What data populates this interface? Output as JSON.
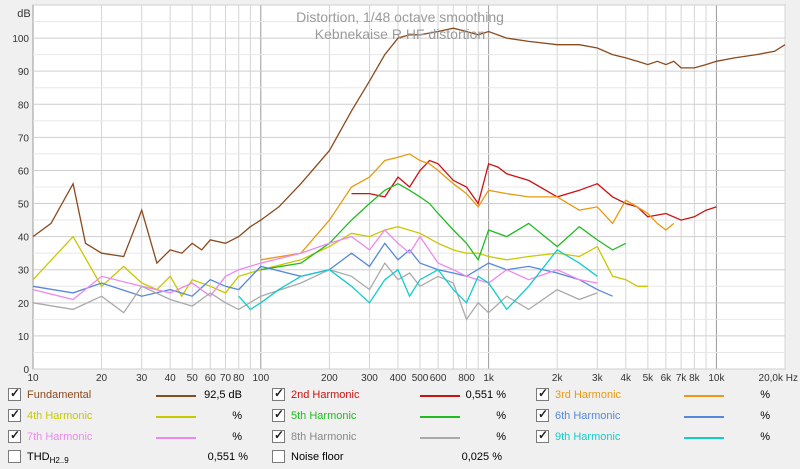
{
  "chart_data": {
    "type": "line",
    "title": "Distortion, 1/48 octave smoothing",
    "subtitle": "Kebnekaise R HF distortion",
    "ylabel": "dB",
    "xscale": "log",
    "xlim": [
      10,
      20000
    ],
    "ylim": [
      0,
      110
    ],
    "grid": true,
    "y_ticks": [
      "0",
      "10",
      "20",
      "30",
      "40",
      "50",
      "60",
      "70",
      "80",
      "90",
      "100"
    ],
    "x_ticks": [
      {
        "v": 10,
        "label": "10"
      },
      {
        "v": 20,
        "label": "20"
      },
      {
        "v": 30,
        "label": "30"
      },
      {
        "v": 40,
        "label": "40"
      },
      {
        "v": 50,
        "label": "50"
      },
      {
        "v": 60,
        "label": "60"
      },
      {
        "v": 70,
        "label": "70"
      },
      {
        "v": 80,
        "label": "80"
      },
      {
        "v": 100,
        "label": "100"
      },
      {
        "v": 200,
        "label": "200"
      },
      {
        "v": 300,
        "label": "300"
      },
      {
        "v": 400,
        "label": "400"
      },
      {
        "v": 500,
        "label": "500"
      },
      {
        "v": 600,
        "label": "600"
      },
      {
        "v": 800,
        "label": "800"
      },
      {
        "v": 1000,
        "label": "1k"
      },
      {
        "v": 2000,
        "label": "2k"
      },
      {
        "v": 3000,
        "label": "3k"
      },
      {
        "v": 4000,
        "label": "4k"
      },
      {
        "v": 5000,
        "label": "5k"
      },
      {
        "v": 6000,
        "label": "6k"
      },
      {
        "v": 7000,
        "label": "7k"
      },
      {
        "v": 8000,
        "label": "8k"
      },
      {
        "v": 10000,
        "label": "10k"
      },
      {
        "v": 20000,
        "label": "20,0k Hz"
      }
    ],
    "series": [
      {
        "name": "Fundamental",
        "color": "#8b4a1e",
        "x": [
          10,
          12,
          15,
          17,
          20,
          25,
          30,
          35,
          40,
          45,
          50,
          55,
          60,
          70,
          80,
          90,
          100,
          120,
          150,
          200,
          250,
          300,
          350,
          400,
          450,
          500,
          600,
          700,
          800,
          900,
          1000,
          1200,
          1500,
          2000,
          2500,
          3000,
          3500,
          4000,
          4500,
          5000,
          5500,
          6000,
          6500,
          7000,
          8000,
          9000,
          10000,
          12000,
          15000,
          18000,
          20000
        ],
        "y": [
          40,
          44,
          56,
          38,
          35,
          34,
          48,
          32,
          36,
          35,
          38,
          36,
          39,
          38,
          40,
          43,
          45,
          49,
          56,
          66,
          78,
          87,
          95,
          100,
          101,
          101,
          102,
          103,
          102,
          101,
          102,
          100,
          99,
          98,
          98,
          97,
          95,
          94,
          93,
          92,
          93,
          92,
          93,
          91,
          91,
          92,
          93,
          94,
          95,
          96,
          98
        ]
      },
      {
        "name": "2nd Harmonic",
        "color": "#cc1111",
        "x": [
          250,
          300,
          350,
          400,
          450,
          500,
          550,
          600,
          700,
          800,
          900,
          1000,
          1100,
          1200,
          1500,
          2000,
          2500,
          3000,
          3500,
          4000,
          4500,
          5000,
          6000,
          7000,
          8000,
          9000,
          10000
        ],
        "y": [
          53,
          53,
          52,
          58,
          55,
          60,
          63,
          62,
          57,
          55,
          50,
          62,
          61,
          59,
          57,
          52,
          54,
          56,
          52,
          50,
          49,
          46,
          47,
          45,
          46,
          48,
          49
        ]
      },
      {
        "name": "3rd Harmonic",
        "color": "#e89a10",
        "x": [
          100,
          150,
          200,
          250,
          300,
          350,
          400,
          450,
          500,
          550,
          600,
          700,
          800,
          900,
          1000,
          1200,
          1500,
          2000,
          2500,
          3000,
          3500,
          4000,
          4500,
          5000,
          5500,
          6000,
          6500
        ],
        "y": [
          33,
          35,
          45,
          55,
          58,
          63,
          64,
          65,
          63,
          62,
          60,
          56,
          53,
          49,
          54,
          53,
          52,
          52,
          48,
          49,
          44,
          51,
          49,
          47,
          44,
          42,
          44
        ]
      },
      {
        "name": "4th Harmonic",
        "color": "#c8c800",
        "x": [
          10,
          15,
          20,
          25,
          30,
          35,
          40,
          45,
          50,
          60,
          70,
          80,
          100,
          150,
          200,
          250,
          300,
          350,
          400,
          500,
          600,
          700,
          800,
          900,
          1000,
          1200,
          1500,
          2000,
          2500,
          3000,
          3500,
          4000,
          4500,
          5000
        ],
        "y": [
          27,
          40,
          25,
          31,
          26,
          24,
          28,
          22,
          27,
          25,
          23,
          28,
          30,
          33,
          37,
          41,
          40,
          42,
          43,
          41,
          38,
          36,
          35,
          35,
          34,
          33,
          34,
          35,
          34,
          37,
          28,
          27,
          25,
          25
        ]
      },
      {
        "name": "5th Harmonic",
        "color": "#22bb22",
        "x": [
          100,
          150,
          200,
          250,
          300,
          350,
          400,
          450,
          500,
          550,
          600,
          700,
          800,
          900,
          1000,
          1200,
          1500,
          2000,
          2500,
          3000,
          3500,
          4000
        ],
        "y": [
          30,
          32,
          38,
          45,
          50,
          54,
          56,
          54,
          52,
          50,
          47,
          42,
          38,
          33,
          42,
          40,
          44,
          37,
          43,
          39,
          36,
          38
        ]
      },
      {
        "name": "6th Harmonic",
        "color": "#5588dd",
        "x": [
          10,
          15,
          20,
          30,
          40,
          50,
          60,
          70,
          80,
          100,
          150,
          200,
          250,
          300,
          350,
          400,
          450,
          500,
          600,
          700,
          800,
          1000,
          1200,
          1500,
          2000,
          2500,
          3000,
          3500
        ],
        "y": [
          25,
          23,
          26,
          22,
          24,
          22,
          27,
          25,
          24,
          31,
          28,
          30,
          35,
          31,
          38,
          33,
          36,
          32,
          30,
          29,
          28,
          32,
          30,
          31,
          29,
          27,
          24,
          22
        ]
      },
      {
        "name": "7th Harmonic",
        "color": "#ee88ee",
        "x": [
          10,
          15,
          20,
          30,
          40,
          50,
          60,
          70,
          80,
          100,
          150,
          200,
          250,
          300,
          350,
          400,
          450,
          500,
          600,
          700,
          800,
          1000,
          1200,
          1500,
          2000,
          2500,
          3000
        ],
        "y": [
          24,
          21,
          28,
          25,
          23,
          26,
          22,
          28,
          30,
          32,
          35,
          38,
          40,
          36,
          42,
          38,
          35,
          40,
          32,
          30,
          28,
          26,
          30,
          27,
          30,
          27,
          26
        ]
      },
      {
        "name": "8th Harmonic",
        "color": "#aaaaaa",
        "x": [
          10,
          15,
          20,
          25,
          30,
          40,
          50,
          60,
          70,
          80,
          100,
          150,
          200,
          250,
          300,
          350,
          400,
          450,
          500,
          600,
          700,
          800,
          900,
          1000,
          1200,
          1500,
          2000,
          2500,
          3000
        ],
        "y": [
          20,
          18,
          22,
          17,
          25,
          21,
          19,
          23,
          20,
          18,
          22,
          26,
          30,
          28,
          24,
          32,
          27,
          29,
          25,
          28,
          26,
          15,
          20,
          17,
          22,
          18,
          24,
          21,
          23
        ]
      },
      {
        "name": "9th Harmonic",
        "color": "#11cccc",
        "x": [
          80,
          90,
          100,
          120,
          150,
          200,
          250,
          300,
          350,
          400,
          450,
          500,
          600,
          700,
          800,
          900,
          1000,
          1200,
          1500,
          2000,
          2500,
          3000
        ],
        "y": [
          22,
          18,
          20,
          24,
          28,
          30,
          25,
          20,
          27,
          30,
          22,
          27,
          30,
          24,
          20,
          28,
          26,
          18,
          25,
          36,
          32,
          28
        ]
      }
    ]
  },
  "legend": {
    "rows": [
      [
        {
          "label": "Fundamental",
          "value": "92,5 dB",
          "color": "#8b4a1e",
          "label_color": "#8b4a1e",
          "checked": true
        },
        {
          "label": "2nd Harmonic",
          "value": "0,551 %",
          "color": "#cc1111",
          "label_color": "#cc1111",
          "checked": true
        },
        {
          "label": "3rd Harmonic",
          "value": "%",
          "color": "#e89a10",
          "label_color": "#e89a10",
          "checked": true
        }
      ],
      [
        {
          "label": "4th Harmonic",
          "value": "%",
          "color": "#c8c800",
          "label_color": "#c8c800",
          "checked": true
        },
        {
          "label": "5th Harmonic",
          "value": "%",
          "color": "#22bb22",
          "label_color": "#22bb22",
          "checked": true
        },
        {
          "label": "6th Harmonic",
          "value": "%",
          "color": "#5588dd",
          "label_color": "#5588dd",
          "checked": true
        }
      ],
      [
        {
          "label": "7th Harmonic",
          "value": "%",
          "color": "#ee88ee",
          "label_color": "#ee88ee",
          "checked": true
        },
        {
          "label": "8th Harmonic",
          "value": "%",
          "color": "#aaaaaa",
          "label_color": "#888888",
          "checked": true
        },
        {
          "label": "9th Harmonic",
          "value": "%",
          "color": "#11cccc",
          "label_color": "#11cccc",
          "checked": true
        }
      ]
    ],
    "thd_label": "THD",
    "thd_sub": "H2..9",
    "thd_value": "0,551 %",
    "noise_label": "Noise floor",
    "noise_value": "0,025 %"
  }
}
